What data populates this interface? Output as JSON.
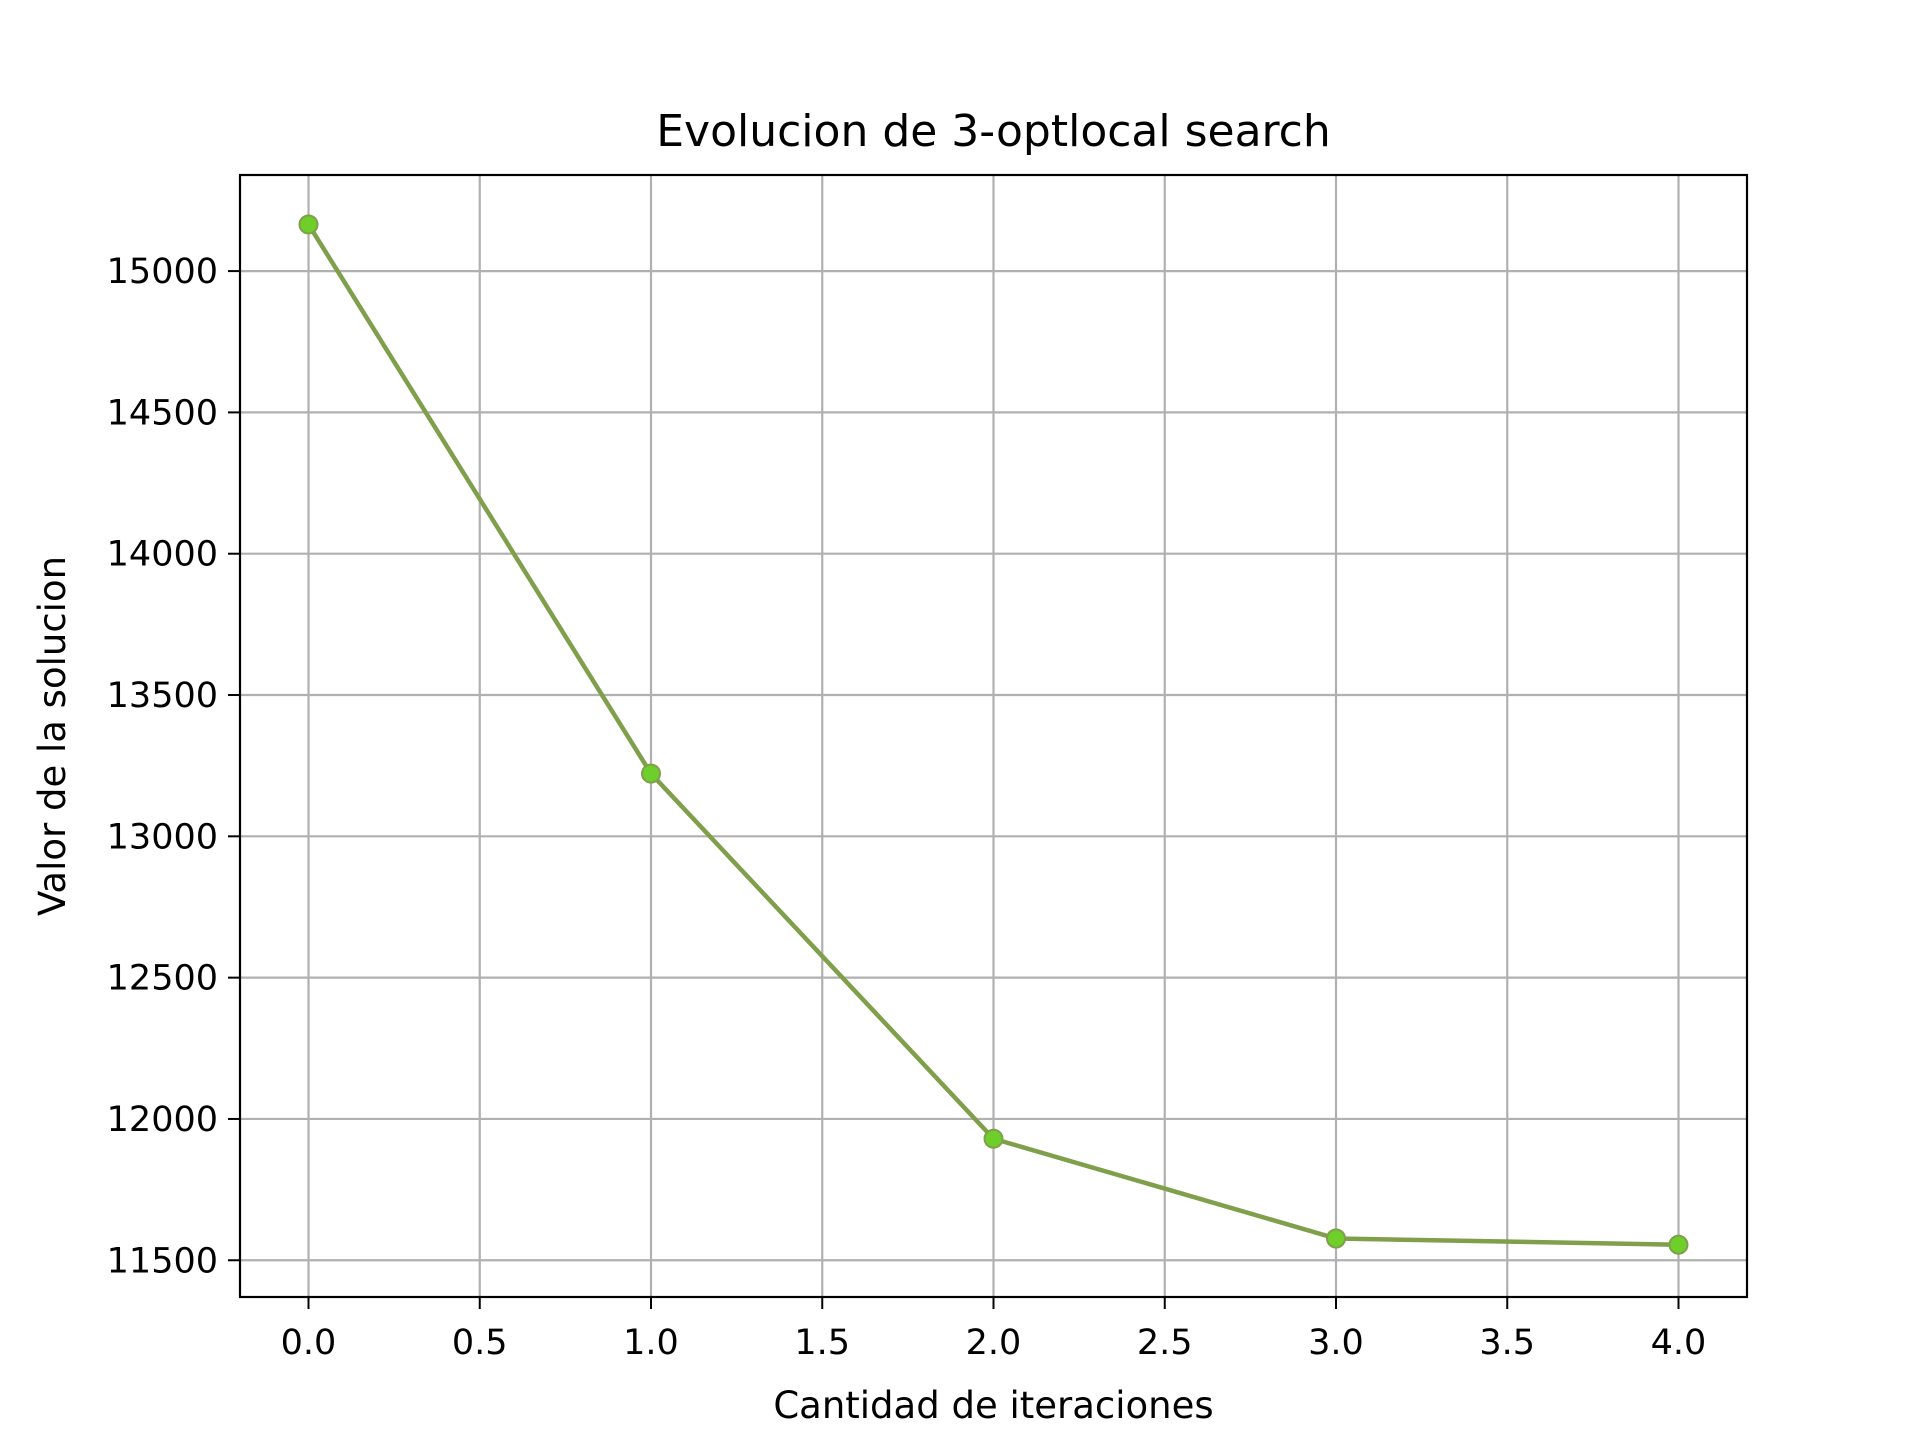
{
  "chart_data": {
    "type": "line",
    "title": "Evolucion de 3-optlocal search",
    "xlabel": "Cantidad de iteraciones",
    "ylabel": "Valor de la solucion",
    "x": [
      0,
      1,
      2,
      3,
      4
    ],
    "series": [
      {
        "values": [
          15165,
          13222,
          11930,
          11577,
          11555
        ]
      }
    ],
    "xlim": [
      -0.2,
      4.2
    ],
    "ylim": [
      11370,
      15340
    ],
    "xticks": [
      0.0,
      0.5,
      1.0,
      1.5,
      2.0,
      2.5,
      3.0,
      3.5,
      4.0
    ],
    "xtick_labels": [
      "0.0",
      "0.5",
      "1.0",
      "1.5",
      "2.0",
      "2.5",
      "3.0",
      "3.5",
      "4.0"
    ],
    "yticks": [
      11500,
      12000,
      12500,
      13000,
      13500,
      14000,
      14500,
      15000
    ],
    "ytick_labels": [
      "11500",
      "12000",
      "12500",
      "13000",
      "13500",
      "14000",
      "14500",
      "15000"
    ],
    "grid": true,
    "colors": {
      "line": "#7f9f4b",
      "marker": "#6fcf2a",
      "grid": "#b0b0b0",
      "axes": "#000000"
    }
  }
}
